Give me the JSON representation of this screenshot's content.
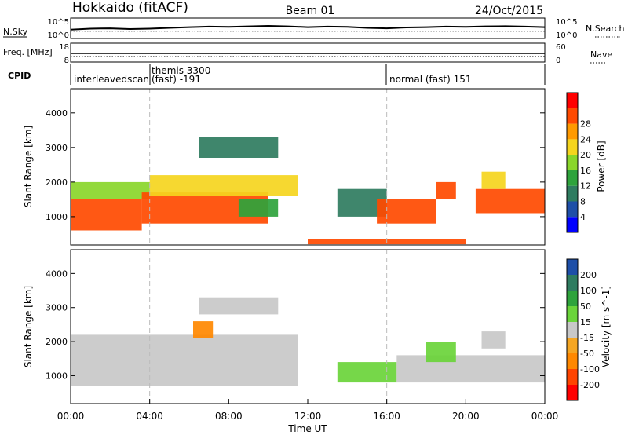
{
  "header": {
    "site": "Hokkaido (fitACF)",
    "beam": "Beam 01",
    "date": "24/Oct/2015"
  },
  "colors": {
    "power_scale": [
      "#0000ff",
      "#1e4fa8",
      "#2f7c60",
      "#2ea33c",
      "#8ad62a",
      "#f5d51e",
      "#ff9a00",
      "#ff4a00",
      "#ff0000"
    ],
    "velocity_scale": [
      "#0000ff",
      "#1e4fa8",
      "#2f7c60",
      "#2ea33c",
      "#6ad43a",
      "#c8c8c8",
      "#f5a623",
      "#ff8800",
      "#ff4400",
      "#ff0000"
    ],
    "boundary_line": "#bbbbbb"
  },
  "chart_data": [
    {
      "type": "line",
      "panel": "noise",
      "series": [
        {
          "name": "N.Sky",
          "values": [
            150,
            250,
            300,
            200,
            250,
            400,
            600,
            800,
            700,
            900,
            1200,
            900,
            600,
            800,
            700,
            400,
            300,
            500,
            600,
            800,
            700,
            900,
            1000,
            800,
            600
          ]
        },
        {
          "name": "N.Search",
          "values": [
            60,
            60,
            60,
            60,
            60,
            60,
            60,
            60,
            60,
            60,
            60,
            60,
            60,
            60,
            60,
            60,
            60,
            60,
            60,
            60,
            60,
            60,
            60,
            60,
            60
          ]
        }
      ],
      "x": [
        "00:00",
        "01:00",
        "02:00",
        "03:00",
        "04:00",
        "05:00",
        "06:00",
        "07:00",
        "08:00",
        "09:00",
        "10:00",
        "11:00",
        "12:00",
        "13:00",
        "14:00",
        "15:00",
        "16:00",
        "17:00",
        "18:00",
        "19:00",
        "20:00",
        "21:00",
        "22:00",
        "23:00",
        "24:00"
      ],
      "ylabel_left": "N.Sky",
      "ylabel_right": "N.Search",
      "yticks": [
        "10^5",
        "10^0"
      ],
      "ylim": [
        1,
        100000
      ],
      "yscale": "log"
    },
    {
      "type": "line",
      "panel": "frequency",
      "series": [
        {
          "name": "Freq. [MHz]",
          "values": [
            10.5,
            10.5,
            10.5,
            10.5,
            10.5,
            10.5
          ]
        },
        {
          "name": "Nave",
          "values": [
            15,
            15,
            15,
            15,
            15,
            15
          ]
        }
      ],
      "x": [
        "00:00",
        "04:48",
        "09:36",
        "14:24",
        "19:12",
        "24:00"
      ],
      "ylabel_left": "Freq. [MHz]",
      "ylabel_right": "Nave",
      "yticks_left": [
        "18",
        "8"
      ],
      "yticks_right": [
        "60",
        "0"
      ],
      "ylim_left": [
        8,
        18
      ],
      "ylim_right": [
        0,
        60
      ]
    },
    {
      "type": "table",
      "panel": "cpid",
      "label": "CPID",
      "segments": [
        {
          "start": "00:00",
          "end": "04:00",
          "text": "interleavedscan"
        },
        {
          "start": "04:00",
          "end": "16:00",
          "text": "themis 3300",
          "text2": "(fast) -191"
        },
        {
          "start": "16:00",
          "end": "24:00",
          "text": "normal (fast) 151"
        }
      ]
    },
    {
      "type": "heatmap",
      "panel": "power",
      "xlabel": "",
      "ylabel": "Slant Range [km]",
      "xlim_hours": [
        0,
        24
      ],
      "ylim": [
        180,
        4700
      ],
      "yticks": [
        1000,
        2000,
        3000,
        4000
      ],
      "colorbar_label": "Power [dB]",
      "colorbar_ticks": [
        4,
        8,
        12,
        16,
        20,
        24,
        28
      ],
      "clim": [
        0,
        32
      ],
      "blobs": [
        {
          "t0": 0.0,
          "t1": 3.6,
          "r0": 600,
          "r1": 1500,
          "v": 29
        },
        {
          "t0": 0.0,
          "t1": 4.0,
          "r0": 1500,
          "r1": 2000,
          "v": 18
        },
        {
          "t0": 3.6,
          "t1": 10.0,
          "r0": 800,
          "r1": 1700,
          "v": 28
        },
        {
          "t0": 4.0,
          "t1": 11.5,
          "r0": 1600,
          "r1": 2200,
          "v": 22
        },
        {
          "t0": 6.5,
          "t1": 10.5,
          "r0": 2700,
          "r1": 3300,
          "v": 10
        },
        {
          "t0": 8.5,
          "t1": 10.5,
          "r0": 1000,
          "r1": 1500,
          "v": 14
        },
        {
          "t0": 13.5,
          "t1": 16.0,
          "r0": 1000,
          "r1": 1800,
          "v": 11
        },
        {
          "t0": 15.5,
          "t1": 18.5,
          "r0": 800,
          "r1": 1500,
          "v": 28
        },
        {
          "t0": 18.5,
          "t1": 19.5,
          "r0": 1500,
          "r1": 2000,
          "v": 30
        },
        {
          "t0": 20.5,
          "t1": 24.0,
          "r0": 1100,
          "r1": 1800,
          "v": 28
        },
        {
          "t0": 20.8,
          "t1": 22.0,
          "r0": 1800,
          "r1": 2300,
          "v": 22
        },
        {
          "t0": 12.0,
          "t1": 20.0,
          "r0": 200,
          "r1": 350,
          "v": 28
        }
      ]
    },
    {
      "type": "heatmap",
      "panel": "velocity",
      "xlabel": "Time UT",
      "ylabel": "Slant Range [km]",
      "xlim_hours": [
        0,
        24
      ],
      "xticks": [
        "00:00",
        "04:00",
        "08:00",
        "12:00",
        "16:00",
        "20:00",
        "00:00"
      ],
      "ylim": [
        180,
        4700
      ],
      "yticks": [
        1000,
        2000,
        3000,
        4000
      ],
      "colorbar_label": "Velocity [m s^-1]",
      "colorbar_ticks": [
        200,
        100,
        50,
        15,
        -15,
        -50,
        -100,
        -200
      ],
      "blobs": [
        {
          "t0": 0.0,
          "t1": 11.5,
          "r0": 700,
          "r1": 2200,
          "v": 0
        },
        {
          "t0": 6.5,
          "t1": 10.5,
          "r0": 2800,
          "r1": 3300,
          "v": 0
        },
        {
          "t0": 6.2,
          "t1": 7.2,
          "r0": 2100,
          "r1": 2600,
          "v": -60
        },
        {
          "t0": 13.5,
          "t1": 16.5,
          "r0": 800,
          "r1": 1400,
          "v": 40
        },
        {
          "t0": 16.5,
          "t1": 24.0,
          "r0": 800,
          "r1": 1600,
          "v": 0
        },
        {
          "t0": 18.0,
          "t1": 19.5,
          "r0": 1400,
          "r1": 2000,
          "v": 40
        },
        {
          "t0": 20.8,
          "t1": 22.0,
          "r0": 1800,
          "r1": 2300,
          "v": 0
        }
      ]
    }
  ]
}
